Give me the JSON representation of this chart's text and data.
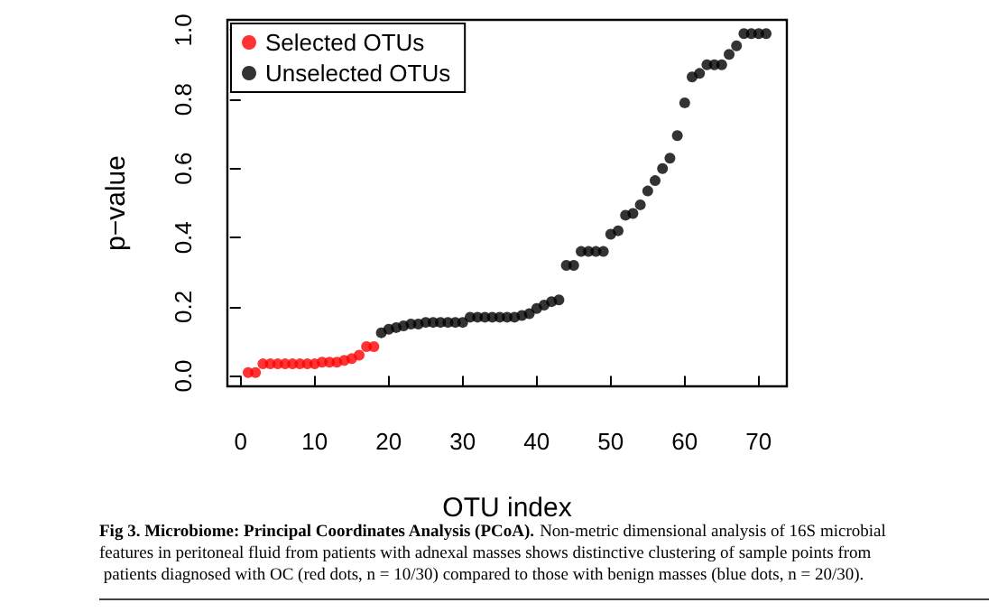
{
  "chart_data": {
    "type": "scatter",
    "xlabel": "OTU index",
    "ylabel": "p−value",
    "annotations": [
      "Fig 3. Microbiome: Principal Coordinates Analysis (PCoA).",
      "Non-metric dimensional analysis of 16S microbial features in peritoneal fluid from patients with adnexal masses shows distinctive clustering of sample points from patients diagnosed with OC (red dots, n = 10/30) compared to those with benign masses (blue dots, n = 20/30)."
    ],
    "series": [
      {
        "name": "Selected OTUs",
        "color": "#ff0000",
        "x": [
          1,
          2,
          3,
          4,
          5,
          6,
          7,
          8,
          9,
          10,
          11,
          12,
          13,
          14,
          15,
          16,
          17,
          18
        ],
        "values": [
          0.01,
          0.01,
          0.035,
          0.035,
          0.035,
          0.035,
          0.035,
          0.035,
          0.035,
          0.035,
          0.04,
          0.04,
          0.04,
          0.045,
          0.05,
          0.06,
          0.085,
          0.085
        ]
      },
      {
        "name": "Unselected OTUs",
        "color": "#000000",
        "x": [
          19,
          20,
          21,
          22,
          23,
          24,
          25,
          26,
          27,
          28,
          29,
          30,
          31,
          32,
          33,
          34,
          35,
          36,
          37,
          38,
          39,
          40,
          41,
          42,
          43,
          44,
          45,
          46,
          47,
          48,
          49,
          50,
          51,
          52,
          53,
          54,
          55,
          56,
          57,
          58,
          59,
          60,
          61,
          62,
          63,
          64,
          65,
          66,
          67,
          68,
          69,
          70,
          71
        ],
        "values": [
          0.125,
          0.135,
          0.14,
          0.145,
          0.15,
          0.15,
          0.155,
          0.155,
          0.155,
          0.155,
          0.155,
          0.155,
          0.17,
          0.17,
          0.17,
          0.17,
          0.17,
          0.17,
          0.17,
          0.175,
          0.18,
          0.195,
          0.205,
          0.215,
          0.22,
          0.32,
          0.32,
          0.36,
          0.36,
          0.36,
          0.36,
          0.41,
          0.42,
          0.465,
          0.47,
          0.495,
          0.535,
          0.565,
          0.6,
          0.63,
          0.695,
          0.79,
          0.865,
          0.875,
          0.9,
          0.9,
          0.9,
          0.93,
          0.955,
          0.99,
          0.99,
          0.99,
          0.99
        ]
      }
    ],
    "xlim": [
      -1.8,
      73.8
    ],
    "xticks": [
      0,
      10,
      20,
      30,
      40,
      50,
      60,
      70
    ],
    "ylim": [
      -0.03,
      1.03
    ],
    "yticks": [
      {
        "value": 0,
        "label": "0.0"
      },
      0.2,
      0.4,
      0.6,
      0.8,
      {
        "value": 1,
        "label": "1.0"
      }
    ],
    "grid": false,
    "legend": "top left",
    "marker": "circle"
  }
}
